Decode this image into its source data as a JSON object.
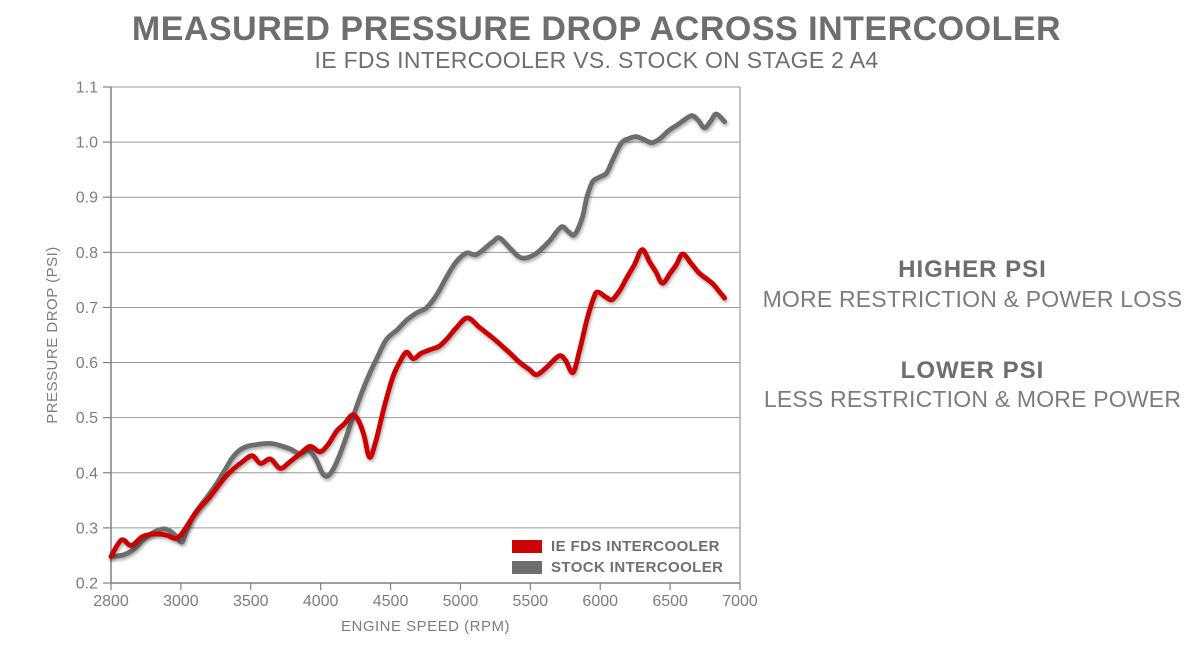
{
  "title": "MEASURED PRESSURE DROP ACROSS INTERCOOLER",
  "subtitle": "IE FDS INTERCOOLER VS. STOCK ON STAGE 2 A4",
  "annotations": {
    "higher_head": "HIGHER PSI",
    "higher_sub": "MORE RESTRICTION & POWER LOSS",
    "lower_head": "LOWER PSI",
    "lower_sub": "LESS RESTRICTION & MORE POWER"
  },
  "colors": {
    "red_series": "#cc0404",
    "gray_series": "#6d6d6d",
    "grid": "#9a9a9a",
    "axis": "#808080",
    "tick_text": "#7d7d7d",
    "heading_text": "#6e6e6e"
  },
  "chart_data": {
    "type": "line",
    "title": "MEASURED PRESSURE DROP ACROSS INTERCOOLER",
    "subtitle": "IE FDS INTERCOOLER VS. STOCK ON STAGE 2 A4",
    "xlabel": "ENGINE SPEED (RPM)",
    "ylabel": "PRESSURE DROP (PSI)",
    "x_ticks": [
      2800,
      3000,
      3500,
      4000,
      4500,
      5000,
      5500,
      6000,
      6500,
      7000
    ],
    "x_tick_note": "ticks evenly spaced (category-style axis; 2800-3000 span equals 500-rpm spans)",
    "y_ticks": [
      0.2,
      0.3,
      0.4,
      0.5,
      0.6,
      0.7,
      0.8,
      0.9,
      1.0,
      1.1
    ],
    "ylim": [
      0.2,
      1.1
    ],
    "grid": "horizontal-only",
    "legend_position": "inside-bottom-center",
    "legend": [
      {
        "label": "IE FDS INTERCOOLER",
        "color": "#cc0404"
      },
      {
        "label": "STOCK INTERCOOLER",
        "color": "#6d6d6d"
      }
    ],
    "series": [
      {
        "name": "STOCK INTERCOOLER",
        "color": "#6d6d6d",
        "points": [
          [
            2800,
            0.248
          ],
          [
            2835,
            0.251
          ],
          [
            2865,
            0.261
          ],
          [
            2895,
            0.28
          ],
          [
            2925,
            0.293
          ],
          [
            2955,
            0.298
          ],
          [
            2980,
            0.289
          ],
          [
            3005,
            0.274
          ],
          [
            3035,
            0.291
          ],
          [
            3085,
            0.32
          ],
          [
            3145,
            0.342
          ],
          [
            3205,
            0.362
          ],
          [
            3260,
            0.382
          ],
          [
            3315,
            0.405
          ],
          [
            3365,
            0.426
          ],
          [
            3420,
            0.441
          ],
          [
            3475,
            0.448
          ],
          [
            3535,
            0.451
          ],
          [
            3595,
            0.453
          ],
          [
            3655,
            0.453
          ],
          [
            3715,
            0.449
          ],
          [
            3785,
            0.443
          ],
          [
            3850,
            0.435
          ],
          [
            3912,
            0.441
          ],
          [
            3965,
            0.425
          ],
          [
            4015,
            0.398
          ],
          [
            4055,
            0.395
          ],
          [
            4105,
            0.414
          ],
          [
            4165,
            0.452
          ],
          [
            4230,
            0.5
          ],
          [
            4290,
            0.543
          ],
          [
            4350,
            0.58
          ],
          [
            4410,
            0.612
          ],
          [
            4470,
            0.642
          ],
          [
            4550,
            0.66
          ],
          [
            4615,
            0.677
          ],
          [
            4685,
            0.69
          ],
          [
            4755,
            0.699
          ],
          [
            4830,
            0.723
          ],
          [
            4900,
            0.755
          ],
          [
            4970,
            0.783
          ],
          [
            5045,
            0.799
          ],
          [
            5115,
            0.796
          ],
          [
            5230,
            0.819
          ],
          [
            5280,
            0.826
          ],
          [
            5360,
            0.806
          ],
          [
            5435,
            0.79
          ],
          [
            5530,
            0.796
          ],
          [
            5635,
            0.82
          ],
          [
            5720,
            0.846
          ],
          [
            5770,
            0.838
          ],
          [
            5815,
            0.832
          ],
          [
            5870,
            0.862
          ],
          [
            5905,
            0.9
          ],
          [
            5945,
            0.928
          ],
          [
            6000,
            0.937
          ],
          [
            6045,
            0.944
          ],
          [
            6090,
            0.968
          ],
          [
            6150,
            0.998
          ],
          [
            6200,
            1.006
          ],
          [
            6255,
            1.01
          ],
          [
            6310,
            1.005
          ],
          [
            6370,
            0.999
          ],
          [
            6430,
            1.007
          ],
          [
            6490,
            1.021
          ],
          [
            6550,
            1.031
          ],
          [
            6600,
            1.04
          ],
          [
            6655,
            1.048
          ],
          [
            6700,
            1.04
          ],
          [
            6745,
            1.026
          ],
          [
            6790,
            1.038
          ],
          [
            6830,
            1.051
          ],
          [
            6890,
            1.037
          ]
        ]
      },
      {
        "name": "IE FDS INTERCOOLER",
        "color": "#cc0404",
        "points": [
          [
            2800,
            0.248
          ],
          [
            2830,
            0.278
          ],
          [
            2858,
            0.268
          ],
          [
            2890,
            0.284
          ],
          [
            2925,
            0.289
          ],
          [
            2958,
            0.287
          ],
          [
            2988,
            0.281
          ],
          [
            3030,
            0.298
          ],
          [
            3080,
            0.318
          ],
          [
            3140,
            0.338
          ],
          [
            3200,
            0.354
          ],
          [
            3260,
            0.374
          ],
          [
            3320,
            0.393
          ],
          [
            3380,
            0.408
          ],
          [
            3440,
            0.42
          ],
          [
            3510,
            0.431
          ],
          [
            3570,
            0.417
          ],
          [
            3640,
            0.425
          ],
          [
            3710,
            0.408
          ],
          [
            3780,
            0.42
          ],
          [
            3855,
            0.435
          ],
          [
            3925,
            0.448
          ],
          [
            3995,
            0.438
          ],
          [
            4055,
            0.452
          ],
          [
            4115,
            0.476
          ],
          [
            4170,
            0.489
          ],
          [
            4225,
            0.505
          ],
          [
            4268,
            0.496
          ],
          [
            4310,
            0.468
          ],
          [
            4350,
            0.428
          ],
          [
            4395,
            0.458
          ],
          [
            4455,
            0.52
          ],
          [
            4515,
            0.573
          ],
          [
            4570,
            0.603
          ],
          [
            4615,
            0.619
          ],
          [
            4662,
            0.607
          ],
          [
            4720,
            0.617
          ],
          [
            4790,
            0.624
          ],
          [
            4850,
            0.63
          ],
          [
            4910,
            0.645
          ],
          [
            4970,
            0.663
          ],
          [
            5050,
            0.681
          ],
          [
            5135,
            0.664
          ],
          [
            5230,
            0.645
          ],
          [
            5280,
            0.634
          ],
          [
            5350,
            0.618
          ],
          [
            5420,
            0.601
          ],
          [
            5490,
            0.588
          ],
          [
            5545,
            0.578
          ],
          [
            5615,
            0.591
          ],
          [
            5705,
            0.612
          ],
          [
            5752,
            0.604
          ],
          [
            5805,
            0.582
          ],
          [
            5855,
            0.625
          ],
          [
            5905,
            0.678
          ],
          [
            5950,
            0.715
          ],
          [
            5980,
            0.728
          ],
          [
            6045,
            0.718
          ],
          [
            6085,
            0.714
          ],
          [
            6140,
            0.731
          ],
          [
            6190,
            0.754
          ],
          [
            6245,
            0.778
          ],
          [
            6300,
            0.805
          ],
          [
            6355,
            0.782
          ],
          [
            6400,
            0.764
          ],
          [
            6445,
            0.744
          ],
          [
            6500,
            0.762
          ],
          [
            6545,
            0.778
          ],
          [
            6590,
            0.797
          ],
          [
            6650,
            0.78
          ],
          [
            6705,
            0.763
          ],
          [
            6760,
            0.752
          ],
          [
            6805,
            0.743
          ],
          [
            6845,
            0.731
          ],
          [
            6890,
            0.717
          ]
        ]
      }
    ]
  }
}
